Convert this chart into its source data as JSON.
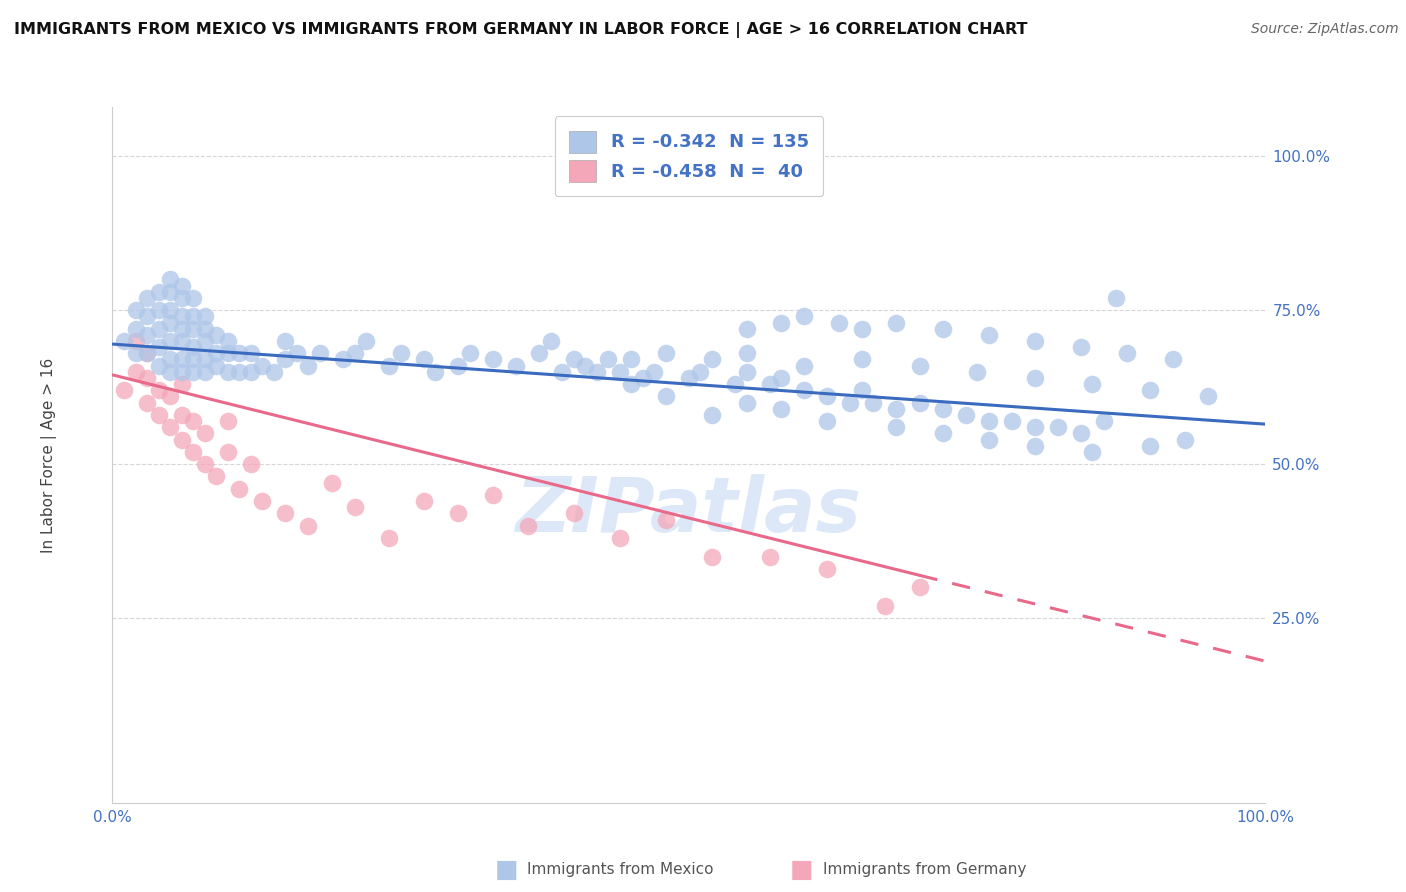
{
  "title": "IMMIGRANTS FROM MEXICO VS IMMIGRANTS FROM GERMANY IN LABOR FORCE | AGE > 16 CORRELATION CHART",
  "source": "Source: ZipAtlas.com",
  "ylabel": "In Labor Force | Age > 16",
  "ytick_labels": [
    "25.0%",
    "50.0%",
    "75.0%",
    "100.0%"
  ],
  "ytick_positions": [
    0.25,
    0.5,
    0.75,
    1.0
  ],
  "xlim": [
    0.0,
    1.0
  ],
  "ylim": [
    -0.05,
    1.08
  ],
  "legend_entries": [
    {
      "label": "R = -0.342  N = 135",
      "color": "#aec6e8"
    },
    {
      "label": "R = -0.458  N =  40",
      "color": "#f4a7b9"
    }
  ],
  "blue_color": "#aec6e8",
  "pink_color": "#f4a7b9",
  "blue_line_color": "#3a6bbf",
  "pink_line_color": "#e8698a",
  "text_color": "#4472c4",
  "watermark": "ZIPatlas",
  "watermark_color": "#dce8f8",
  "background_color": "#ffffff",
  "grid_color": "#cccccc",
  "blue_trend": {
    "x_start": 0.0,
    "y_start": 0.695,
    "x_end": 1.0,
    "y_end": 0.565
  },
  "pink_trend": {
    "x_start": 0.0,
    "y_start": 0.645,
    "x_end": 1.0,
    "y_end": 0.18
  },
  "blue_scatter_x": [
    0.01,
    0.02,
    0.02,
    0.02,
    0.03,
    0.03,
    0.03,
    0.03,
    0.04,
    0.04,
    0.04,
    0.04,
    0.04,
    0.05,
    0.05,
    0.05,
    0.05,
    0.05,
    0.05,
    0.05,
    0.06,
    0.06,
    0.06,
    0.06,
    0.06,
    0.06,
    0.06,
    0.07,
    0.07,
    0.07,
    0.07,
    0.07,
    0.07,
    0.08,
    0.08,
    0.08,
    0.08,
    0.08,
    0.09,
    0.09,
    0.09,
    0.1,
    0.1,
    0.1,
    0.11,
    0.11,
    0.12,
    0.12,
    0.13,
    0.14,
    0.15,
    0.15,
    0.16,
    0.17,
    0.18,
    0.2,
    0.21,
    0.22,
    0.24,
    0.25,
    0.27,
    0.28,
    0.3,
    0.31,
    0.33,
    0.35,
    0.37,
    0.38,
    0.39,
    0.4,
    0.41,
    0.43,
    0.44,
    0.45,
    0.46,
    0.47,
    0.48,
    0.5,
    0.51,
    0.52,
    0.54,
    0.55,
    0.57,
    0.58,
    0.6,
    0.62,
    0.64,
    0.65,
    0.66,
    0.68,
    0.7,
    0.72,
    0.74,
    0.76,
    0.78,
    0.8,
    0.82,
    0.84,
    0.86,
    0.87,
    0.55,
    0.58,
    0.6,
    0.63,
    0.65,
    0.68,
    0.72,
    0.76,
    0.8,
    0.84,
    0.88,
    0.92,
    0.55,
    0.6,
    0.65,
    0.7,
    0.75,
    0.8,
    0.85,
    0.9,
    0.95,
    0.55,
    0.58,
    0.62,
    0.68,
    0.72,
    0.76,
    0.8,
    0.85,
    0.9,
    0.93,
    0.42,
    0.45,
    0.48,
    0.52
  ],
  "blue_scatter_y": [
    0.7,
    0.68,
    0.72,
    0.75,
    0.68,
    0.71,
    0.74,
    0.77,
    0.66,
    0.69,
    0.72,
    0.75,
    0.78,
    0.65,
    0.67,
    0.7,
    0.73,
    0.75,
    0.78,
    0.8,
    0.65,
    0.67,
    0.7,
    0.72,
    0.74,
    0.77,
    0.79,
    0.65,
    0.67,
    0.69,
    0.72,
    0.74,
    0.77,
    0.65,
    0.67,
    0.7,
    0.72,
    0.74,
    0.66,
    0.68,
    0.71,
    0.65,
    0.68,
    0.7,
    0.65,
    0.68,
    0.65,
    0.68,
    0.66,
    0.65,
    0.67,
    0.7,
    0.68,
    0.66,
    0.68,
    0.67,
    0.68,
    0.7,
    0.66,
    0.68,
    0.67,
    0.65,
    0.66,
    0.68,
    0.67,
    0.66,
    0.68,
    0.7,
    0.65,
    0.67,
    0.66,
    0.67,
    0.65,
    0.67,
    0.64,
    0.65,
    0.68,
    0.64,
    0.65,
    0.67,
    0.63,
    0.65,
    0.63,
    0.64,
    0.62,
    0.61,
    0.6,
    0.62,
    0.6,
    0.59,
    0.6,
    0.59,
    0.58,
    0.57,
    0.57,
    0.56,
    0.56,
    0.55,
    0.57,
    0.77,
    0.72,
    0.73,
    0.74,
    0.73,
    0.72,
    0.73,
    0.72,
    0.71,
    0.7,
    0.69,
    0.68,
    0.67,
    0.68,
    0.66,
    0.67,
    0.66,
    0.65,
    0.64,
    0.63,
    0.62,
    0.61,
    0.6,
    0.59,
    0.57,
    0.56,
    0.55,
    0.54,
    0.53,
    0.52,
    0.53,
    0.54,
    0.65,
    0.63,
    0.61,
    0.58
  ],
  "pink_scatter_x": [
    0.01,
    0.02,
    0.02,
    0.03,
    0.03,
    0.03,
    0.04,
    0.04,
    0.05,
    0.05,
    0.06,
    0.06,
    0.06,
    0.07,
    0.07,
    0.08,
    0.08,
    0.09,
    0.1,
    0.1,
    0.11,
    0.12,
    0.13,
    0.15,
    0.17,
    0.19,
    0.21,
    0.24,
    0.27,
    0.3,
    0.33,
    0.36,
    0.4,
    0.44,
    0.48,
    0.52,
    0.57,
    0.62,
    0.67,
    0.7
  ],
  "pink_scatter_y": [
    0.62,
    0.65,
    0.7,
    0.6,
    0.64,
    0.68,
    0.58,
    0.62,
    0.56,
    0.61,
    0.54,
    0.58,
    0.63,
    0.52,
    0.57,
    0.5,
    0.55,
    0.48,
    0.52,
    0.57,
    0.46,
    0.5,
    0.44,
    0.42,
    0.4,
    0.47,
    0.43,
    0.38,
    0.44,
    0.42,
    0.45,
    0.4,
    0.42,
    0.38,
    0.41,
    0.35,
    0.35,
    0.33,
    0.27,
    0.3
  ]
}
